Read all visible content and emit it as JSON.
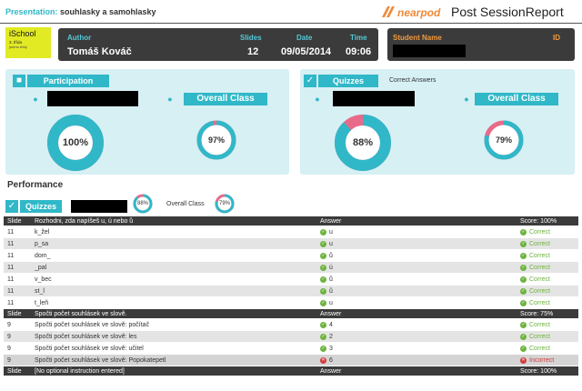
{
  "header": {
    "presentation_label": "Presentation:",
    "presentation_title": "souhlasky a samohlasky",
    "logo_text": "nearpod",
    "report_title": "Post SessionReport"
  },
  "school": {
    "name": "iSchool",
    "class": "3. třída",
    "sub": "jméno třídy"
  },
  "info": {
    "author_label": "Author",
    "author": "Tomáš Kováč",
    "slides_label": "Slides",
    "slides": "12",
    "date_label": "Date",
    "date": "09/05/2014",
    "time_label": "Time",
    "time": "09:06"
  },
  "student": {
    "name_label": "Student Name",
    "id_label": "ID"
  },
  "participation": {
    "title": "Participation",
    "overall_label": "Overall Class",
    "student_pct": "100%",
    "class_pct": "97%",
    "student_value": 100,
    "class_value": 97
  },
  "quizzes": {
    "title": "Quizzes",
    "subtitle": "Correct Answers",
    "overall_label": "Overall Class",
    "student_pct": "88%",
    "class_pct": "79%",
    "student_value": 88,
    "class_value": 79
  },
  "performance": {
    "title": "Performance",
    "quiz_tag": "Quizzes",
    "student_pct": "88%",
    "overall_label": "Overall Class",
    "class_pct": "79%"
  },
  "table": {
    "sections": [
      {
        "slide_label": "Slide",
        "question": "Rozhodni, zda napíšeš u, ú nebo ů",
        "answer_label": "Answer",
        "score": "Score: 100%",
        "rows": [
          {
            "slide": "11",
            "q": "k_žel",
            "a": "u",
            "result": "Correct",
            "ok": true
          },
          {
            "slide": "11",
            "q": "p_sa",
            "a": "u",
            "result": "Correct",
            "ok": true
          },
          {
            "slide": "11",
            "q": "dom_",
            "a": "ů",
            "result": "Correct",
            "ok": true
          },
          {
            "slide": "11",
            "q": "_pal",
            "a": "ú",
            "result": "Correct",
            "ok": true
          },
          {
            "slide": "11",
            "q": "v_bec",
            "a": "ů",
            "result": "Correct",
            "ok": true
          },
          {
            "slide": "11",
            "q": "st_l",
            "a": "ů",
            "result": "Correct",
            "ok": true
          },
          {
            "slide": "11",
            "q": "t_leň",
            "a": "u",
            "result": "Correct",
            "ok": true
          }
        ]
      },
      {
        "slide_label": "Slide",
        "question": "Spočti počet souhlásek ve slově.",
        "answer_label": "Answer",
        "score": "Score: 75%",
        "rows": [
          {
            "slide": "9",
            "q": "Spočti počet souhlásek ve slově: počítač",
            "a": "4",
            "result": "Correct",
            "ok": true
          },
          {
            "slide": "9",
            "q": "Spočti počet souhlásek ve slově: les",
            "a": "2",
            "result": "Correct",
            "ok": true
          },
          {
            "slide": "9",
            "q": "Spočti počet souhlásek ve slově: učitel",
            "a": "3",
            "result": "Correct",
            "ok": true
          },
          {
            "slide": "9",
            "q": "Spočti počet souhlásek ve slově: Popokatepetl",
            "a": "6",
            "result": "Incorrect",
            "ok": false
          }
        ]
      },
      {
        "slide_label": "Slide",
        "question": "[No optional instruction entered]",
        "answer_label": "Answer",
        "score": "Score: 100%",
        "rows": []
      }
    ]
  },
  "colors": {
    "accent": "#30b8c8",
    "ring_miss": "#e86a8a",
    "ok": "#6db43e",
    "bad": "#d63a3a",
    "dark": "#3b3b3b"
  }
}
